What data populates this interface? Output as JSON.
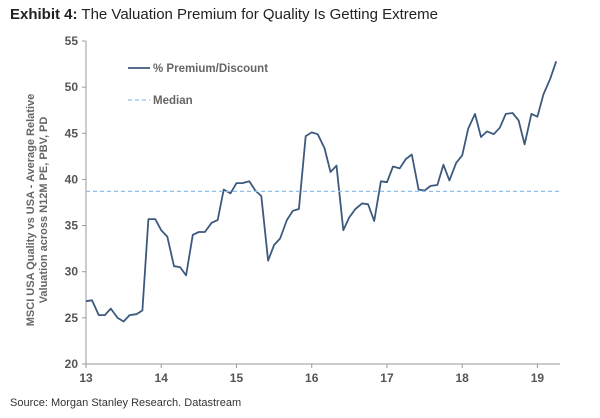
{
  "header": {
    "exhibit_label": "Exhibit 4:",
    "title": "The Valuation Premium for Quality Is Getting Extreme"
  },
  "footer": {
    "source": "Source: Morgan Stanley Research. Datastream"
  },
  "chart_data": {
    "type": "line",
    "title": "The Valuation Premium for Quality Is Getting Extreme",
    "ylabel_line1": "MSCI USA Quality vs USA - Average Relative",
    "ylabel_line2": "Valuation across N12M PE, PBV, PD",
    "xlabel": "",
    "ylim": [
      20,
      55
    ],
    "yticks": [
      20,
      25,
      30,
      35,
      40,
      45,
      50,
      55
    ],
    "xlim": [
      13,
      19.3
    ],
    "xticks": [
      13,
      14,
      15,
      16,
      17,
      18,
      19
    ],
    "xtick_labels": [
      "13",
      "14",
      "15",
      "16",
      "17",
      "18",
      "19"
    ],
    "grid": false,
    "legend_position": "top-left",
    "series": [
      {
        "name": "% Premium/Discount",
        "color": "#3d5a7e",
        "style": "solid",
        "x": [
          13.0,
          13.08,
          13.17,
          13.25,
          13.33,
          13.42,
          13.5,
          13.58,
          13.67,
          13.75,
          13.83,
          13.92,
          14.0,
          14.08,
          14.17,
          14.25,
          14.33,
          14.42,
          14.5,
          14.58,
          14.67,
          14.75,
          14.83,
          14.92,
          15.0,
          15.08,
          15.17,
          15.25,
          15.33,
          15.42,
          15.5,
          15.58,
          15.67,
          15.75,
          15.83,
          15.92,
          16.0,
          16.08,
          16.17,
          16.25,
          16.33,
          16.42,
          16.5,
          16.58,
          16.67,
          16.75,
          16.83,
          16.92,
          17.0,
          17.08,
          17.17,
          17.25,
          17.33,
          17.42,
          17.5,
          17.58,
          17.67,
          17.75,
          17.83,
          17.92,
          18.0,
          18.08,
          18.17,
          18.25,
          18.33,
          18.42,
          18.5,
          18.58,
          18.67,
          18.75,
          18.83,
          18.92,
          19.0,
          19.08,
          19.17,
          19.25
        ],
        "values": [
          26.8,
          26.9,
          25.3,
          25.3,
          26.0,
          25.0,
          24.6,
          25.3,
          25.4,
          25.8,
          35.7,
          35.7,
          34.5,
          33.8,
          30.6,
          30.5,
          29.6,
          34.0,
          34.3,
          34.3,
          35.3,
          35.6,
          38.9,
          38.5,
          39.6,
          39.6,
          39.8,
          38.8,
          38.2,
          31.2,
          32.9,
          33.6,
          35.6,
          36.6,
          36.8,
          44.7,
          45.1,
          44.9,
          43.4,
          40.8,
          41.5,
          34.5,
          35.9,
          36.8,
          37.4,
          37.3,
          35.5,
          39.8,
          39.7,
          41.4,
          41.2,
          42.2,
          42.7,
          38.9,
          38.8,
          39.3,
          39.4,
          41.6,
          39.9,
          41.8,
          42.6,
          45.5,
          47.1,
          44.6,
          45.2,
          44.9,
          45.6,
          47.1,
          47.2,
          46.4,
          43.8,
          47.1,
          46.8,
          49.2,
          50.9,
          52.8
        ]
      },
      {
        "name": "Median",
        "color": "#8fc0ec",
        "style": "dashed",
        "x": [
          13.0,
          19.3
        ],
        "values": [
          38.7,
          38.7
        ]
      }
    ]
  }
}
